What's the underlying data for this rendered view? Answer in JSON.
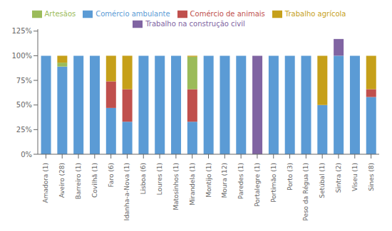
{
  "chart_data": {
    "type": "bar",
    "stacked": true,
    "grid": false,
    "legend": "top",
    "categories": [
      "Amadora (1)",
      "Aveiro (28)",
      "Barreiro (1)",
      "Covilhã (1)",
      "Faro (6)",
      "Idanha-a-Nova (1)",
      "Lisboa (6)",
      "Loures (1)",
      "Matosinhos (1)",
      "Mirandela (1)",
      "Montijo (1)",
      "Moura (12)",
      "Paredes (1)",
      "Portalegre (1)",
      "Portimão (1)",
      "Porto (3)",
      "Peso da Régua (1)",
      "Setúbal (1)",
      "Sintra (2)",
      "Viseu (1)",
      "Sines (8)"
    ],
    "series": [
      {
        "name": "Comércio ambulante",
        "color": "#5B9BD5",
        "values": [
          100,
          89,
          100,
          100,
          47,
          33,
          100,
          100,
          100,
          33,
          100,
          100,
          100,
          0,
          100,
          100,
          100,
          50,
          100,
          100,
          58
        ]
      },
      {
        "name": "Comércio de animais",
        "color": "#C0504D",
        "values": [
          0,
          0,
          0,
          0,
          27,
          33,
          0,
          0,
          0,
          33,
          0,
          0,
          0,
          0,
          0,
          0,
          0,
          0,
          0,
          0,
          8
        ]
      },
      {
        "name": "Artesãos",
        "color": "#9BBB59",
        "values": [
          0,
          4,
          0,
          0,
          0,
          0,
          0,
          0,
          0,
          33,
          0,
          0,
          0,
          0,
          0,
          0,
          0,
          0,
          0,
          0,
          0
        ]
      },
      {
        "name": "Trabalho na construção civil",
        "color": "#8064A2",
        "values": [
          0,
          0,
          0,
          0,
          0,
          0,
          0,
          0,
          0,
          0,
          0,
          0,
          0,
          100,
          0,
          0,
          0,
          0,
          17,
          0,
          0
        ]
      },
      {
        "name": "Trabalho agrícola",
        "color": "#C6A01A",
        "values": [
          0,
          7,
          0,
          0,
          26,
          34,
          0,
          0,
          0,
          1,
          0,
          0,
          0,
          0,
          0,
          0,
          0,
          50,
          0,
          0,
          34
        ]
      }
    ],
    "ylim": [
      0,
      127
    ],
    "yticks": [
      {
        "value": 0,
        "label": "0%"
      },
      {
        "value": 25,
        "label": "25%"
      },
      {
        "value": 50,
        "label": "50%"
      },
      {
        "value": 75,
        "label": "75%"
      },
      {
        "value": 100,
        "label": "100%"
      },
      {
        "value": 125,
        "label": "125%"
      }
    ]
  }
}
